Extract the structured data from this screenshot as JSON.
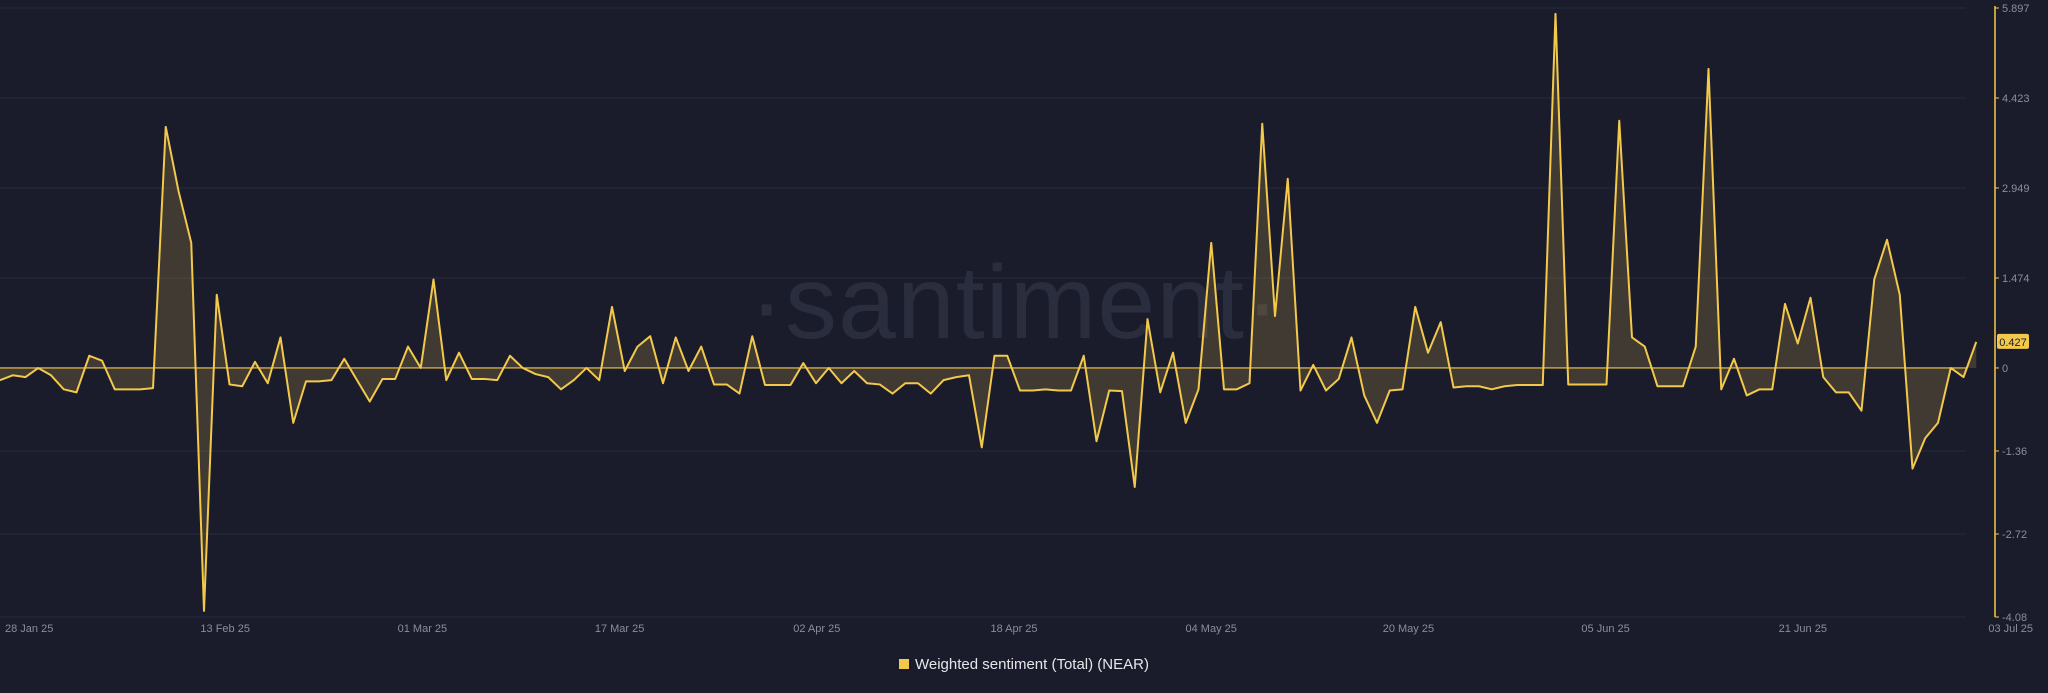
{
  "chart_data": {
    "type": "line",
    "title": "",
    "xlabel": "",
    "ylabel": "",
    "legend": {
      "label": "Weighted sentiment (Total) (NEAR)",
      "position": "bottom-center"
    },
    "watermark": "·santiment·",
    "x_ticks": [
      "28 Jan 25",
      "13 Feb 25",
      "01 Mar 25",
      "17 Mar 25",
      "02 Apr 25",
      "18 Apr 25",
      "04 May 25",
      "20 May 25",
      "05 Jun 25",
      "21 Jun 25",
      "03 Jul 25"
    ],
    "y_ticks": [
      "5.897",
      "4.423",
      "2.949",
      "1.474",
      "0",
      "-1.36",
      "-2.72",
      "-4.08"
    ],
    "ylim": [
      -4.08,
      5.897
    ],
    "latest_value_label": "0.427",
    "colors": {
      "line": "#f3c94b",
      "fill": "#f3c94b",
      "background": "#1a1c2c",
      "grid": "#262a3b",
      "label_box": "#f3c94b"
    },
    "series": [
      {
        "name": "Weighted sentiment (Total) (NEAR)",
        "start_date": "2025-01-27",
        "values": [
          -0.2,
          -0.12,
          -0.15,
          0,
          -0.12,
          -0.35,
          -0.4,
          0.2,
          0.12,
          -0.35,
          -0.35,
          -0.35,
          -0.33,
          3.95,
          2.9,
          2.05,
          -3.98,
          1.2,
          -0.27,
          -0.3,
          0.1,
          -0.25,
          0.5,
          -0.9,
          -0.22,
          -0.22,
          -0.2,
          0.15,
          -0.2,
          -0.55,
          -0.18,
          -0.18,
          0.35,
          0,
          1.45,
          -0.2,
          0.25,
          -0.18,
          -0.18,
          -0.2,
          0.2,
          0,
          -0.1,
          -0.15,
          -0.35,
          -0.2,
          0,
          -0.2,
          1,
          -0.05,
          0.35,
          0.52,
          -0.25,
          0.5,
          -0.05,
          0.35,
          -0.27,
          -0.27,
          -0.42,
          0.52,
          -0.28,
          -0.28,
          -0.28,
          0.08,
          -0.25,
          0,
          -0.25,
          -0.05,
          -0.25,
          -0.27,
          -0.42,
          -0.25,
          -0.25,
          -0.42,
          -0.2,
          -0.15,
          -0.12,
          -1.3,
          0.2,
          0.2,
          -0.37,
          -0.37,
          -0.35,
          -0.37,
          -0.37,
          0.2,
          -1.2,
          -0.37,
          -0.38,
          -1.95,
          0.8,
          -0.4,
          0.25,
          -0.9,
          -0.35,
          2.05,
          -0.35,
          -0.35,
          -0.25,
          4,
          0.85,
          3.1,
          -0.37,
          0.05,
          -0.37,
          -0.18,
          0.5,
          -0.45,
          -0.9,
          -0.37,
          -0.35,
          1,
          0.25,
          0.75,
          -0.32,
          -0.3,
          -0.3,
          -0.35,
          -0.3,
          -0.28,
          -0.28,
          -0.28,
          5.8,
          -0.27,
          -0.27,
          -0.27,
          -0.27,
          4.05,
          0.5,
          0.35,
          -0.3,
          -0.3,
          -0.3,
          0.35,
          4.9,
          -0.35,
          0.15,
          -0.45,
          -0.35,
          -0.35,
          1.05,
          0.4,
          1.15,
          -0.15,
          -0.4,
          -0.4,
          -0.7,
          1.45,
          2.1,
          1.2,
          -1.65,
          -1.15,
          -0.9,
          0,
          -0.15,
          0.427
        ]
      }
    ]
  }
}
